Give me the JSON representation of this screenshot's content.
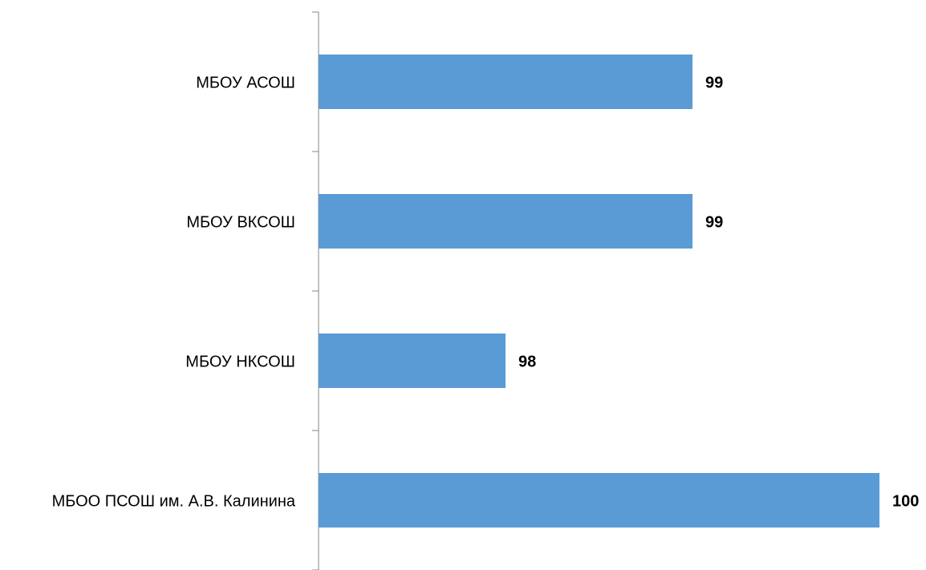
{
  "chart_data": {
    "type": "barh",
    "categories": [
      "МБОУ АСОШ",
      "МБОУ ВКСОШ",
      "МБОУ НКСОШ",
      "МБОО ПСОШ им. А.В. Калинина"
    ],
    "values": [
      99,
      99,
      98,
      100
    ],
    "color": "#5b9bd5",
    "xlim": [
      97,
      100
    ]
  }
}
